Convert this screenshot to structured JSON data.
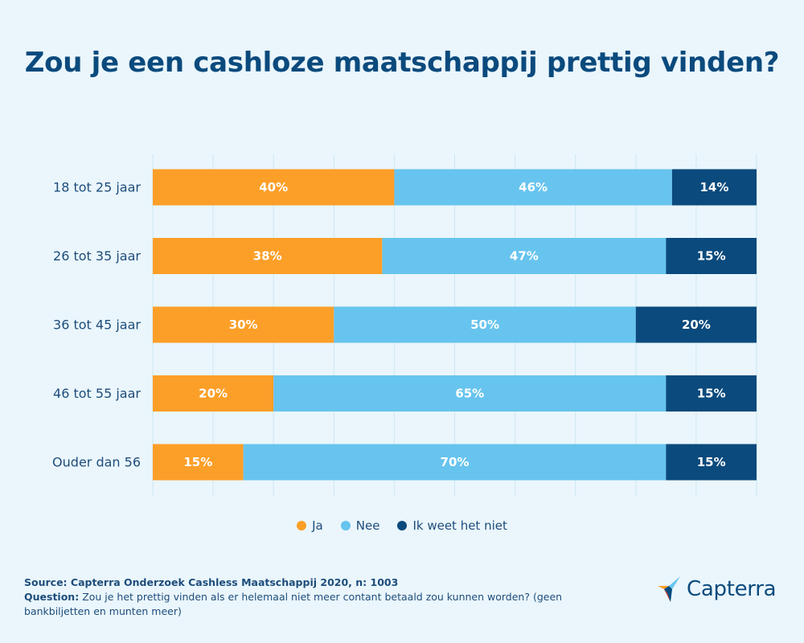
{
  "title": "Zou je een cashloze maatschappij prettig vinden?",
  "chart_data": {
    "type": "bar",
    "orientation": "horizontal",
    "stacked": true,
    "categories": [
      "18 tot 25 jaar",
      "26 tot 35 jaar",
      "36 tot 45 jaar",
      "46 tot 55 jaar",
      "Ouder dan 56"
    ],
    "series": [
      {
        "name": "Ja",
        "color": "#fc9f28",
        "values": [
          40,
          38,
          30,
          20,
          15
        ],
        "labels": [
          "40%",
          "38%",
          "30%",
          "20%",
          "15%"
        ]
      },
      {
        "name": "Nee",
        "color": "#67c4ee",
        "values": [
          46,
          47,
          50,
          65,
          70
        ],
        "labels": [
          "46%",
          "47%",
          "50%",
          "65%",
          "70%"
        ]
      },
      {
        "name": "Ik weet het niet",
        "color": "#0b4a7d",
        "values": [
          14,
          15,
          20,
          15,
          15
        ],
        "labels": [
          "14%",
          "15%",
          "20%",
          "15%",
          "15%"
        ]
      }
    ],
    "xlim": [
      0,
      100
    ],
    "grid": true,
    "legend_position": "bottom"
  },
  "footer": {
    "source": "Source: Capterra Onderzoek Cashless Maatschappij 2020, n: 1003",
    "question_label": "Question:",
    "question_text": "Zou je het prettig vinden als er helemaal niet meer contant betaald zou kunnen worden? (geen bankbiljetten en munten meer)"
  },
  "logo": {
    "text": "Capterra",
    "colors": {
      "orange": "#ff9d28",
      "blue": "#68c5ed",
      "navy": "#044d80",
      "red": "#ff3d2e"
    }
  }
}
